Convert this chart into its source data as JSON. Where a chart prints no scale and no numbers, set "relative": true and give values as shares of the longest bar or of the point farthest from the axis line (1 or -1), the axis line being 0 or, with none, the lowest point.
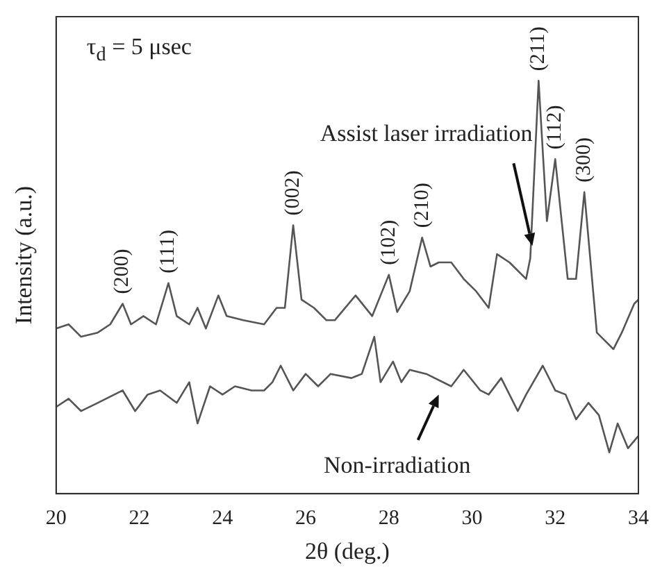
{
  "chart_data": {
    "type": "line",
    "relative": true,
    "xlabel": "2θ (deg.)",
    "ylabel": "Intensity (a.u.)",
    "xlim": [
      20,
      34
    ],
    "xticks": [
      20,
      22,
      24,
      26,
      28,
      30,
      32,
      34
    ],
    "grid": false,
    "legend": false,
    "marker": "none",
    "line_style": "solid",
    "annotations": [
      "τ$_{d}$ = 5  μsec",
      {
        "text": "(200)",
        "x": 21.6,
        "y": 0.46
      },
      {
        "text": "(111)",
        "x": 22.7,
        "y": 0.51
      },
      {
        "text": "(002)",
        "x": 25.7,
        "y": 0.65
      },
      {
        "text": "(102)",
        "x": 28.0,
        "y": 0.53
      },
      {
        "text": "(210)",
        "x": 28.8,
        "y": 0.62
      },
      {
        "text": "(211)",
        "x": 31.6,
        "y": 1
      },
      {
        "text": "(112)",
        "x": 32.0,
        "y": 0.81
      },
      {
        "text": "(300)",
        "x": 32.7,
        "y": 0.73
      }
    ],
    "series": [
      {
        "name": "Assist laser irradiation",
        "color": "#555555",
        "x": [
          20.0,
          20.3,
          20.6,
          21.0,
          21.3,
          21.6,
          21.8,
          22.1,
          22.4,
          22.7,
          22.9,
          23.2,
          23.4,
          23.6,
          23.9,
          24.1,
          24.5,
          25.0,
          25.3,
          25.5,
          25.7,
          25.9,
          26.2,
          26.5,
          26.7,
          27.2,
          27.6,
          28.0,
          28.2,
          28.5,
          28.8,
          29.0,
          29.2,
          29.5,
          29.8,
          30.1,
          30.4,
          30.6,
          30.9,
          31.3,
          31.4,
          31.6,
          31.8,
          32.0,
          32.3,
          32.5,
          32.7,
          33.0,
          33.4,
          33.6,
          33.9,
          34.0
        ],
        "values": [
          0.4,
          0.41,
          0.38,
          0.39,
          0.41,
          0.46,
          0.41,
          0.43,
          0.41,
          0.51,
          0.43,
          0.41,
          0.45,
          0.4,
          0.48,
          0.43,
          0.42,
          0.41,
          0.45,
          0.45,
          0.65,
          0.47,
          0.45,
          0.42,
          0.42,
          0.48,
          0.43,
          0.53,
          0.44,
          0.49,
          0.62,
          0.55,
          0.56,
          0.56,
          0.52,
          0.49,
          0.45,
          0.58,
          0.56,
          0.52,
          0.57,
          1,
          0.66,
          0.81,
          0.52,
          0.52,
          0.73,
          0.39,
          0.35,
          0.39,
          0.46,
          0.47
        ]
      },
      {
        "name": "Non-irradiation",
        "color": "#555555",
        "x": [
          20.0,
          20.3,
          20.6,
          21.0,
          21.6,
          21.9,
          22.2,
          22.5,
          22.9,
          23.2,
          23.4,
          23.7,
          24.0,
          24.3,
          24.7,
          25.0,
          25.2,
          25.4,
          25.7,
          26.0,
          26.3,
          26.6,
          27.1,
          27.35,
          27.65,
          27.8,
          28.1,
          28.3,
          28.5,
          28.9,
          29.5,
          29.8,
          30.2,
          30.4,
          30.7,
          31.1,
          31.3,
          31.7,
          32.0,
          32.25,
          32.5,
          32.8,
          33.05,
          33.3,
          33.5,
          33.75,
          34.0
        ],
        "values": [
          0.21,
          0.23,
          0.2,
          0.22,
          0.25,
          0.2,
          0.24,
          0.25,
          0.22,
          0.27,
          0.17,
          0.26,
          0.24,
          0.26,
          0.25,
          0.25,
          0.27,
          0.31,
          0.25,
          0.29,
          0.26,
          0.29,
          0.28,
          0.29,
          0.38,
          0.27,
          0.32,
          0.27,
          0.3,
          0.29,
          0.26,
          0.3,
          0.25,
          0.24,
          0.28,
          0.2,
          0.24,
          0.31,
          0.25,
          0.24,
          0.18,
          0.22,
          0.19,
          0.1,
          0.17,
          0.11,
          0.14
        ]
      }
    ]
  }
}
